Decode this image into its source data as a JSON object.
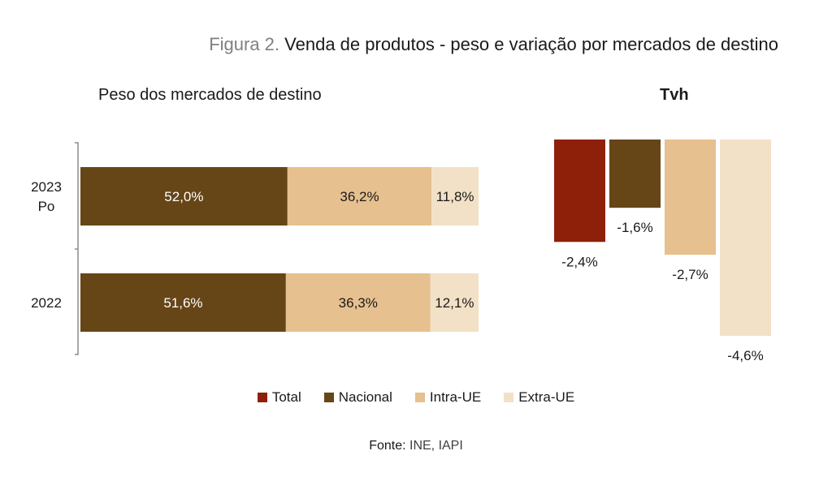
{
  "figure": {
    "number": "Figura 2.",
    "title": "Venda de produtos - peso e variação por mercados de destino",
    "source_label": "Fonte:",
    "source_value": "INE, IAPI"
  },
  "chart_data": [
    {
      "type": "bar",
      "orientation": "horizontal",
      "stacked": true,
      "title": "Peso dos mercados de destino",
      "categories": [
        "2023 Po",
        "2022"
      ],
      "category_lines": [
        [
          "2023",
          "Po"
        ],
        [
          "2022"
        ]
      ],
      "series": [
        {
          "name": "Nacional",
          "color": "#664517",
          "values": [
            52.0,
            51.6
          ],
          "labels": [
            "52,0%",
            "51,6%"
          ]
        },
        {
          "name": "Intra-UE",
          "color": "#E6C08E",
          "values": [
            36.2,
            36.3
          ],
          "labels": [
            "36,2%",
            "36,3%"
          ]
        },
        {
          "name": "Extra-UE",
          "color": "#F2E1C6",
          "values": [
            11.8,
            12.1
          ],
          "labels": [
            "11,8%",
            "12,1%"
          ]
        }
      ],
      "xlim": [
        0,
        100
      ]
    },
    {
      "type": "bar",
      "title": "Tvh",
      "categories": [
        "Total",
        "Nacional",
        "Intra-UE",
        "Extra-UE"
      ],
      "values": [
        -2.4,
        -1.6,
        -2.7,
        -4.6
      ],
      "labels": [
        "-2,4%",
        "-1,6%",
        "-2,7%",
        "-4,6%"
      ],
      "colors": [
        "#8E2009",
        "#664517",
        "#E6C08E",
        "#F2E1C6"
      ],
      "ylim": [
        -4.6,
        0
      ]
    }
  ],
  "legend": [
    {
      "name": "Total",
      "color": "#8E2009"
    },
    {
      "name": "Nacional",
      "color": "#664517"
    },
    {
      "name": "Intra-UE",
      "color": "#E6C08E"
    },
    {
      "name": "Extra-UE",
      "color": "#F2E1C6"
    }
  ]
}
